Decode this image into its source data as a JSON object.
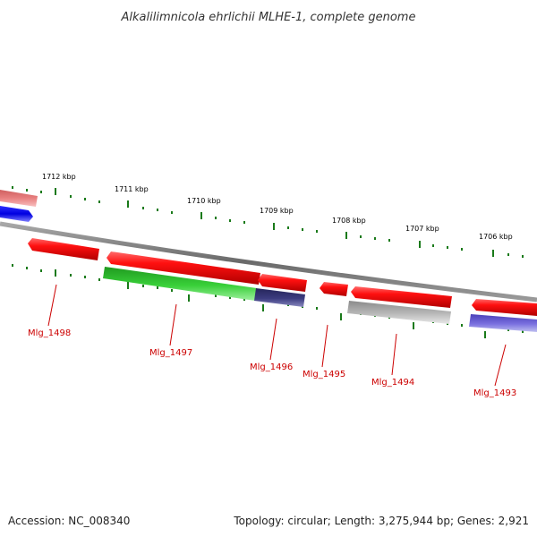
{
  "title": "Alkalilimnicola ehrlichii MLHE-1, complete genome",
  "footer": {
    "accession": "Accession: NC_008340",
    "info": "Topology: circular; Length: 3,275,944 bp; Genes: 2,921"
  },
  "colors": {
    "forward_gene": "#ee1111",
    "hypothetical_gene": "#9f9fd9",
    "highlight_gene": "#2fc42f",
    "dark_gene": "#3a3a7a",
    "gray_gene": "#b8b8b8",
    "backbone": "#808080",
    "tick": "#1a7a1a",
    "label": "#cc0000",
    "blue_gene": "#0a0adf",
    "pink_gene": "#e88080"
  },
  "scale": {
    "unit": "kbp",
    "labels": [
      "1712 kbp",
      "1711 kbp",
      "1710 kbp",
      "1709 kbp",
      "1708 kbp",
      "1707 kbp",
      "1706 kbp"
    ]
  },
  "genes": [
    {
      "name": "Mlg_1498",
      "color_key": "forward_gene"
    },
    {
      "name": "Mlg_1497",
      "color_key": "forward_gene"
    },
    {
      "name": "Mlg_1496",
      "color_key": "forward_gene"
    },
    {
      "name": "Mlg_1495",
      "color_key": "forward_gene"
    },
    {
      "name": "Mlg_1494",
      "color_key": "forward_gene"
    },
    {
      "name": "Mlg_1493",
      "color_key": "forward_gene"
    }
  ]
}
